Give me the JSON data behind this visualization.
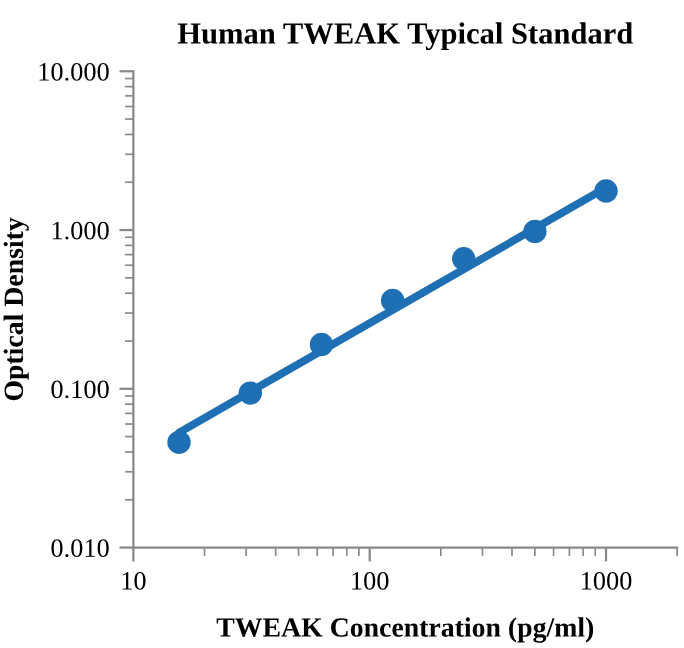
{
  "chart_data": {
    "type": "scatter",
    "title": "Human TWEAK Typical Standard",
    "xlabel": "TWEAK Concentration (pg/ml)",
    "ylabel": "Optical Density",
    "log": "xy",
    "grid": false,
    "legend": false,
    "x": [
      15.6,
      31.25,
      62.5,
      125,
      250,
      500,
      1000
    ],
    "series": [
      {
        "color": "#1f6fb5",
        "marker": "circle",
        "values": [
          0.046,
          0.094,
          0.19,
          0.36,
          0.66,
          0.98,
          1.76
        ]
      },
      {
        "type": "line",
        "color": "#1f6fb5",
        "line_style": "solid",
        "x": [
          15.6,
          1000
        ],
        "values": [
          0.053,
          1.85
        ]
      }
    ],
    "xlim": [
      10,
      2000
    ],
    "xticks": [
      10,
      100,
      1000
    ],
    "ylim": [
      0.01,
      10
    ],
    "yticks": [
      {
        "value": 0.01,
        "label": "0.010"
      },
      {
        "value": 0.1,
        "label": "0.100"
      },
      {
        "value": 1,
        "label": "1.000"
      },
      {
        "value": 10,
        "label": "10.000"
      }
    ]
  }
}
